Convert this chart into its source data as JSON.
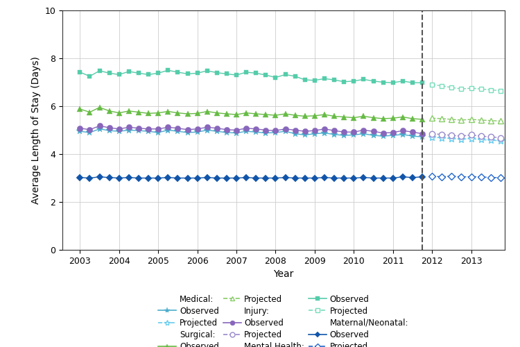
{
  "title": "",
  "xlabel": "Year",
  "ylabel": "Average Length of Stay (Days)",
  "ylim": [
    0,
    10
  ],
  "yticks": [
    0,
    2,
    4,
    6,
    8,
    10
  ],
  "series": {
    "Medical": {
      "color_obs": "#4AACCC",
      "color_proj": "#66CCEE",
      "marker_obs": "*",
      "marker_proj": "*",
      "obs_values": [
        4.95,
        4.9,
        5.05,
        4.98,
        4.95,
        5.0,
        4.98,
        4.95,
        4.9,
        5.0,
        4.95,
        4.9,
        4.92,
        5.0,
        4.95,
        4.9,
        4.88,
        4.95,
        4.92,
        4.88,
        4.9,
        4.95,
        4.85,
        4.8,
        4.85,
        4.88,
        4.82,
        4.78,
        4.8,
        4.85,
        4.78,
        4.75,
        4.78,
        4.82,
        4.75,
        4.72
      ],
      "proj_values": [
        4.7,
        4.68,
        4.65,
        4.62,
        4.65,
        4.6,
        4.58,
        4.55
      ]
    },
    "Surgical": {
      "color_obs": "#66BB44",
      "color_proj": "#88CC66",
      "marker_obs": "^",
      "marker_proj": "^",
      "obs_values": [
        5.88,
        5.75,
        5.95,
        5.8,
        5.72,
        5.8,
        5.75,
        5.7,
        5.72,
        5.78,
        5.72,
        5.68,
        5.7,
        5.78,
        5.72,
        5.68,
        5.65,
        5.72,
        5.68,
        5.65,
        5.62,
        5.68,
        5.62,
        5.58,
        5.6,
        5.65,
        5.58,
        5.55,
        5.52,
        5.58,
        5.52,
        5.48,
        5.5,
        5.55,
        5.48,
        5.45
      ],
      "proj_values": [
        5.5,
        5.48,
        5.45,
        5.42,
        5.45,
        5.42,
        5.4,
        5.38
      ]
    },
    "Injury": {
      "color_obs": "#8866BB",
      "color_proj": "#9988CC",
      "marker_obs": "o",
      "marker_proj": "o",
      "obs_values": [
        5.08,
        5.02,
        5.18,
        5.1,
        5.05,
        5.12,
        5.08,
        5.05,
        5.05,
        5.12,
        5.08,
        5.02,
        5.05,
        5.12,
        5.08,
        5.02,
        5.0,
        5.08,
        5.05,
        5.0,
        4.98,
        5.05,
        5.0,
        4.95,
        4.98,
        5.05,
        4.98,
        4.92,
        4.92,
        5.0,
        4.95,
        4.88,
        4.9,
        4.98,
        4.92,
        4.85
      ],
      "proj_values": [
        4.85,
        4.82,
        4.78,
        4.75,
        4.8,
        4.75,
        4.72,
        4.68
      ]
    },
    "Mental Health": {
      "color_obs": "#55CCAA",
      "color_proj": "#77DDBB",
      "marker_obs": "s",
      "marker_proj": "s",
      "obs_values": [
        7.42,
        7.25,
        7.48,
        7.38,
        7.32,
        7.45,
        7.38,
        7.32,
        7.38,
        7.5,
        7.42,
        7.35,
        7.38,
        7.48,
        7.4,
        7.35,
        7.3,
        7.42,
        7.38,
        7.3,
        7.2,
        7.32,
        7.25,
        7.1,
        7.08,
        7.15,
        7.1,
        7.02,
        7.05,
        7.12,
        7.05,
        7.0,
        6.98,
        7.05,
        6.98,
        6.98
      ],
      "proj_values": [
        6.9,
        6.85,
        6.78,
        6.72,
        6.75,
        6.72,
        6.68,
        6.65
      ]
    },
    "Maternal/Neonatal": {
      "color_obs": "#1155AA",
      "color_proj": "#2266CC",
      "marker_obs": "D",
      "marker_proj": "D",
      "obs_values": [
        3.02,
        3.0,
        3.05,
        3.02,
        3.0,
        3.02,
        3.0,
        3.0,
        3.0,
        3.02,
        3.0,
        3.0,
        3.0,
        3.02,
        3.0,
        3.0,
        3.0,
        3.02,
        3.0,
        3.0,
        3.0,
        3.02,
        3.0,
        3.0,
        3.0,
        3.02,
        3.0,
        3.0,
        3.0,
        3.02,
        3.0,
        3.0,
        3.0,
        3.05,
        3.02,
        3.05
      ],
      "proj_values": [
        3.08,
        3.05,
        3.08,
        3.05,
        3.05,
        3.05,
        3.02,
        3.02
      ]
    }
  },
  "series_order": [
    "Medical",
    "Surgical",
    "Injury",
    "Mental Health",
    "Maternal/Neonatal"
  ],
  "marker_sizes": {
    "Medical": 7,
    "Surgical": 6,
    "Injury": 6,
    "Mental Health": 5,
    "Maternal/Neonatal": 5
  },
  "obs_start_year": 2003.0,
  "proj_start_year": 2012.0,
  "quarters_per_year": 4,
  "vline_x": 2011.75,
  "xlim": [
    2002.55,
    2013.85
  ],
  "background_color": "#ffffff",
  "grid_color": "#cccccc"
}
